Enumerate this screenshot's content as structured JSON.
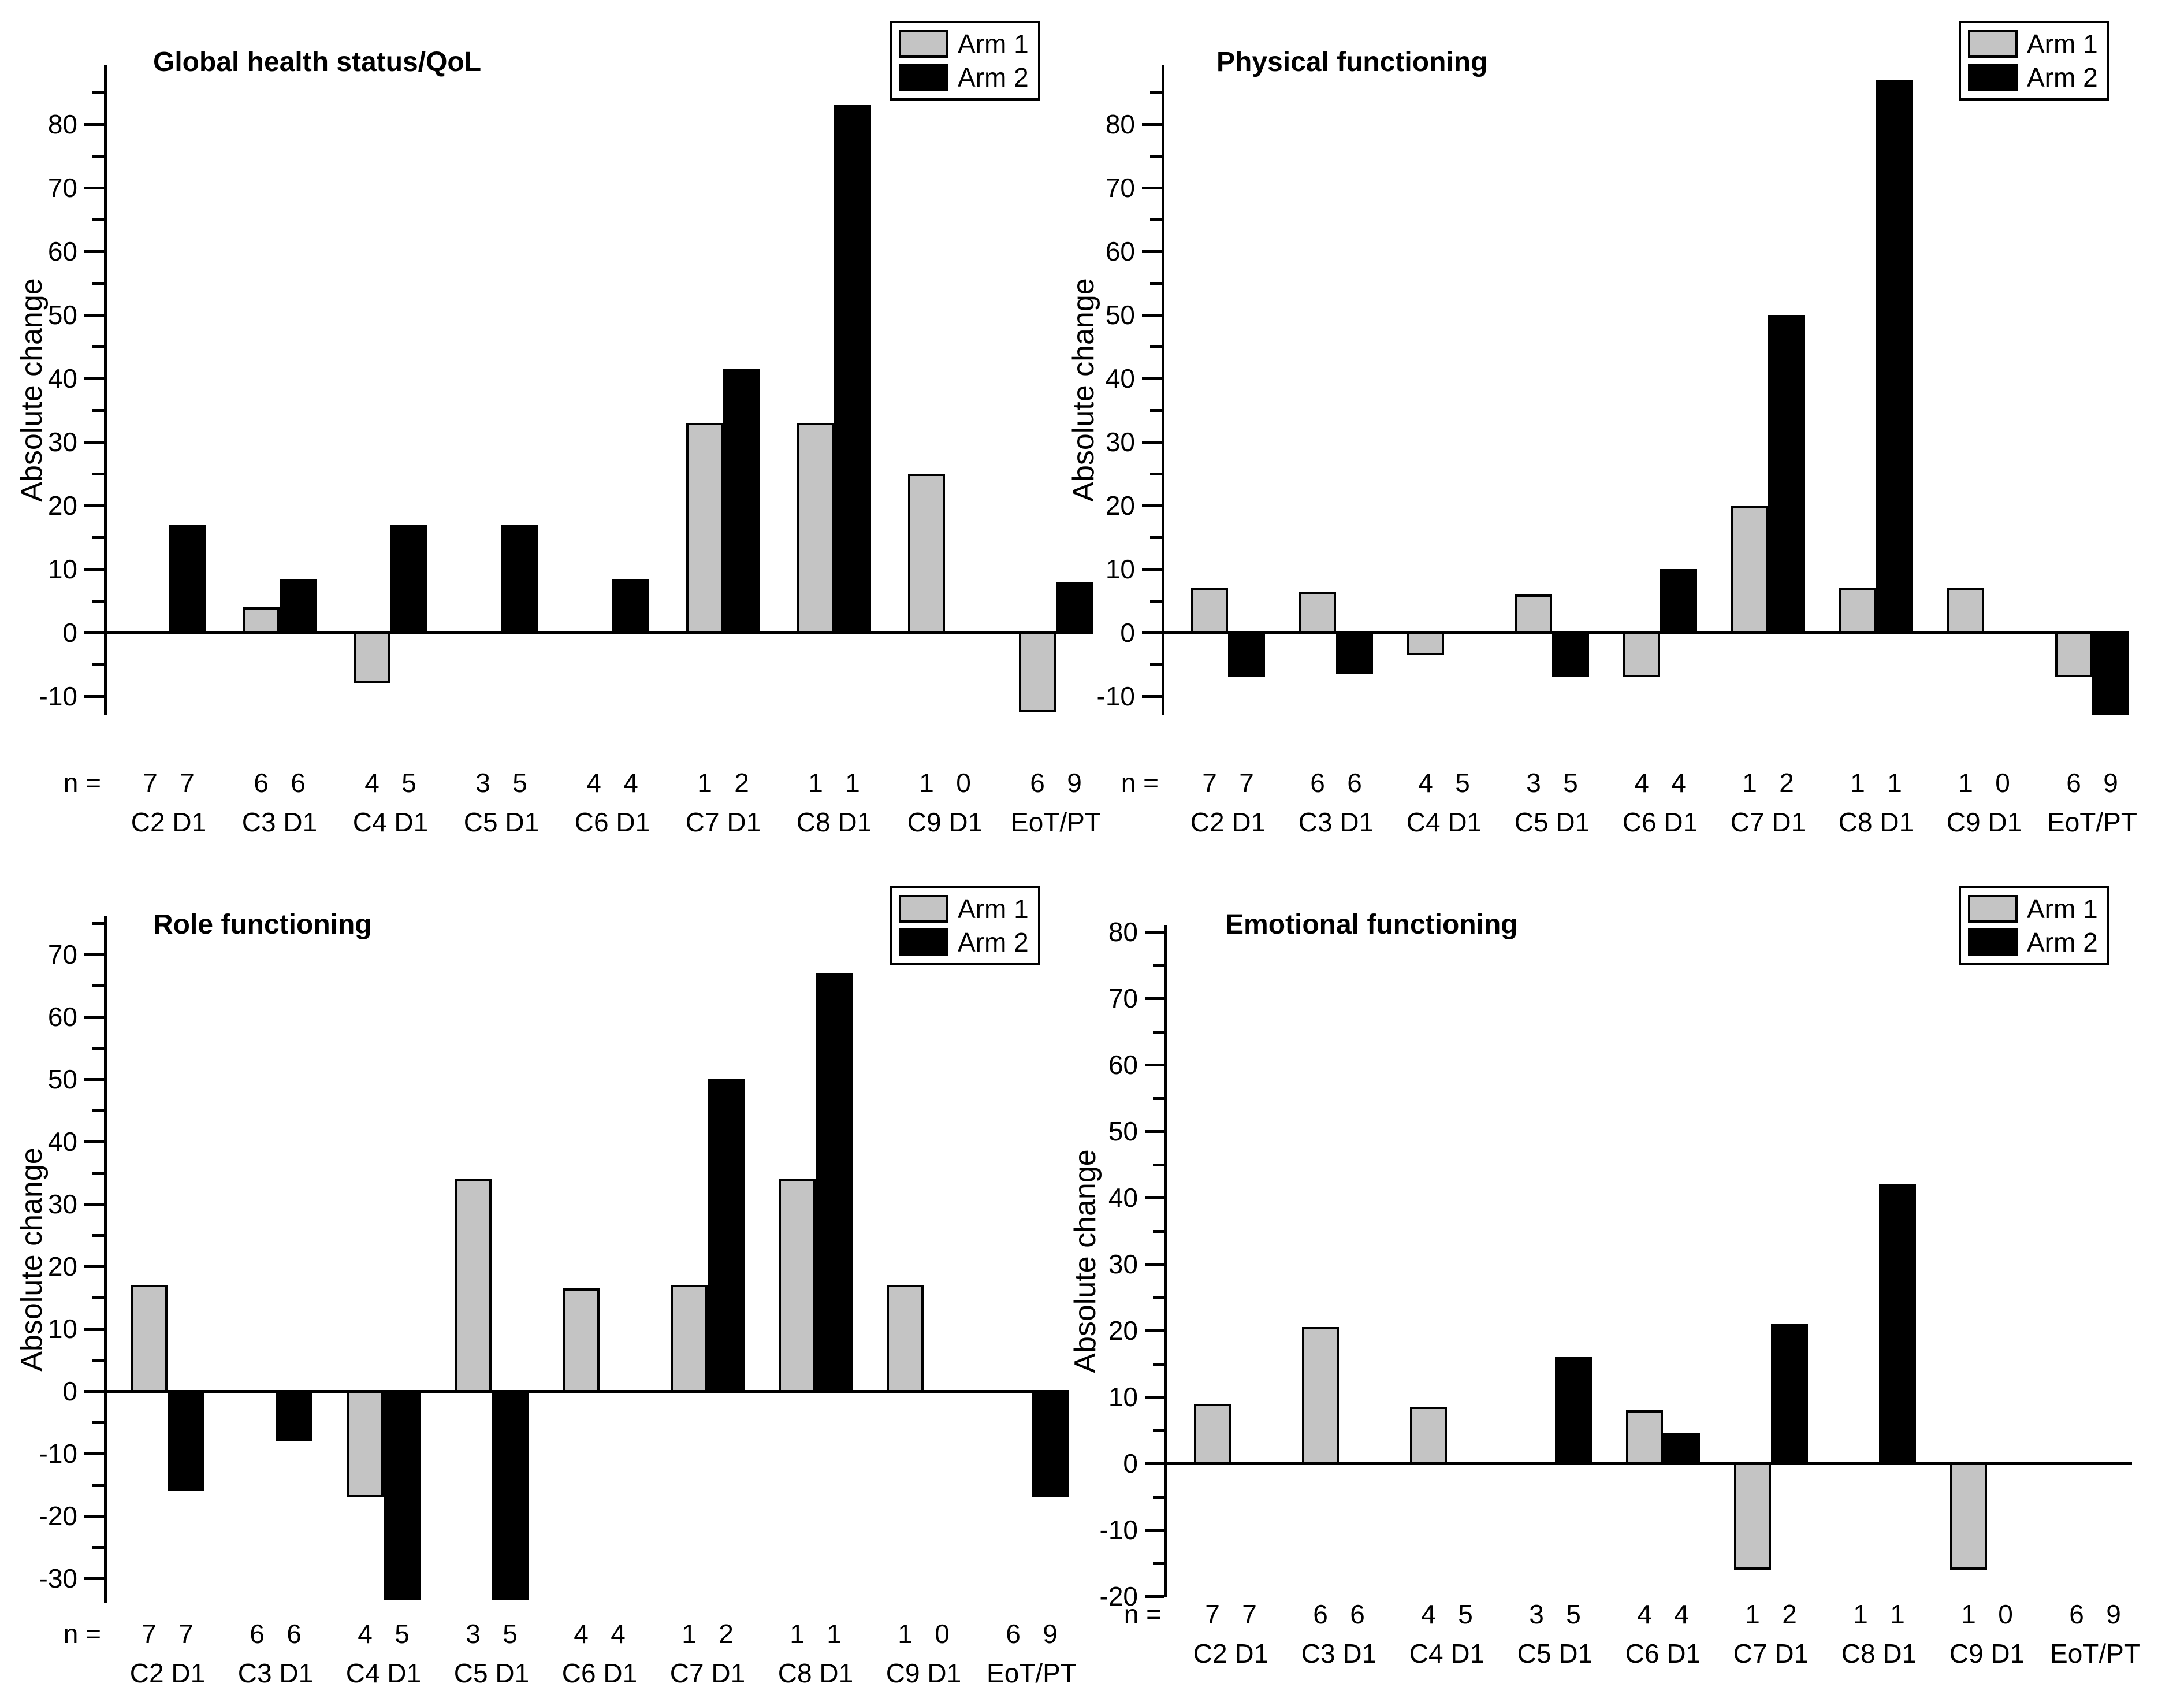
{
  "figure": {
    "background": "#ffffff",
    "arm1_color": "#c4c4c4",
    "arm2_color": "#000000"
  },
  "legend": {
    "items": [
      {
        "label": "Arm 1",
        "color": "#c4c4c4"
      },
      {
        "label": "Arm 2",
        "color": "#000000"
      }
    ]
  },
  "chart_data": [
    {
      "type": "bar",
      "title": "Global health status/QoL",
      "ylabel": "Absolute change",
      "n_prefix": "n =",
      "categories": [
        "C2 D1",
        "C3 D1",
        "C4 D1",
        "C5 D1",
        "C6 D1",
        "C7 D1",
        "C8 D1",
        "C9 D1",
        "EoT/PT"
      ],
      "series": [
        {
          "name": "Arm 1",
          "color": "#c4c4c4",
          "values": [
            0,
            4,
            -8,
            0,
            0,
            33,
            33,
            25,
            -12.5
          ],
          "n": [
            7,
            6,
            4,
            3,
            4,
            1,
            1,
            1,
            6
          ]
        },
        {
          "name": "Arm 2",
          "color": "#000000",
          "values": [
            17,
            8.5,
            17,
            17,
            8.5,
            41.5,
            83,
            0,
            8
          ],
          "n": [
            7,
            6,
            5,
            5,
            4,
            2,
            1,
            0,
            9
          ]
        }
      ],
      "yticks": [
        -10,
        0,
        10,
        20,
        30,
        40,
        50,
        60,
        70,
        80
      ],
      "ylim": [
        -13,
        89
      ],
      "grid": false,
      "legend_position": "top-right"
    },
    {
      "type": "bar",
      "title": "Physical functioning",
      "ylabel": "Absolute change",
      "n_prefix": "n =",
      "categories": [
        "C2 D1",
        "C3 D1",
        "C4 D1",
        "C5 D1",
        "C6 D1",
        "C7 D1",
        "C8 D1",
        "C9 D1",
        "EoT/PT"
      ],
      "series": [
        {
          "name": "Arm 1",
          "color": "#c4c4c4",
          "values": [
            7,
            6.5,
            -3.5,
            6,
            -7,
            20,
            7,
            7,
            -7
          ],
          "n": [
            7,
            6,
            4,
            3,
            4,
            1,
            1,
            1,
            6
          ]
        },
        {
          "name": "Arm 2",
          "color": "#000000",
          "values": [
            -7,
            -6.5,
            0,
            -7,
            10,
            50,
            87,
            0,
            -13
          ],
          "n": [
            7,
            6,
            5,
            5,
            4,
            2,
            1,
            0,
            9
          ]
        }
      ],
      "yticks": [
        -10,
        0,
        10,
        20,
        30,
        40,
        50,
        60,
        70,
        80
      ],
      "ylim": [
        -13,
        89
      ],
      "grid": false,
      "legend_position": "top-right"
    },
    {
      "type": "bar",
      "title": "Role functioning",
      "ylabel": "Absolute change",
      "n_prefix": "n =",
      "categories": [
        "C2 D1",
        "C3 D1",
        "C4 D1",
        "C5 D1",
        "C6 D1",
        "C7 D1",
        "C8 D1",
        "C9 D1",
        "EoT/PT"
      ],
      "series": [
        {
          "name": "Arm 1",
          "color": "#c4c4c4",
          "values": [
            17,
            0,
            -17,
            34,
            16.5,
            17,
            34,
            17,
            0
          ],
          "n": [
            7,
            6,
            4,
            3,
            4,
            1,
            1,
            1,
            6
          ]
        },
        {
          "name": "Arm 2",
          "color": "#000000",
          "values": [
            -16,
            -8,
            -33.5,
            -33.5,
            0,
            50,
            67,
            0,
            -17
          ],
          "n": [
            7,
            6,
            5,
            5,
            4,
            2,
            1,
            0,
            9
          ]
        }
      ],
      "yticks": [
        -30,
        -20,
        -10,
        0,
        10,
        20,
        30,
        40,
        50,
        60,
        70
      ],
      "ylim": [
        -35,
        76
      ],
      "grid": false,
      "legend_position": "top-right"
    },
    {
      "type": "bar",
      "title": "Emotional functioning",
      "ylabel": "Absolute change",
      "n_prefix": "n =",
      "categories": [
        "C2 D1",
        "C3 D1",
        "C4 D1",
        "C5 D1",
        "C6 D1",
        "C7 D1",
        "C8 D1",
        "C9 D1",
        "EoT/PT"
      ],
      "series": [
        {
          "name": "Arm 1",
          "color": "#c4c4c4",
          "values": [
            9,
            20.5,
            8.5,
            0,
            8,
            -16,
            0,
            -16,
            0
          ],
          "n": [
            7,
            6,
            4,
            3,
            4,
            1,
            1,
            1,
            6
          ]
        },
        {
          "name": "Arm 2",
          "color": "#000000",
          "values": [
            0,
            0,
            0,
            16,
            4.5,
            21,
            42,
            0,
            0
          ],
          "n": [
            7,
            6,
            5,
            5,
            4,
            2,
            1,
            0,
            9
          ]
        }
      ],
      "yticks": [
        -20,
        -10,
        0,
        10,
        20,
        30,
        40,
        50,
        60,
        70,
        80
      ],
      "ylim": [
        -20,
        81
      ],
      "grid": false,
      "legend_position": "top-right"
    }
  ]
}
